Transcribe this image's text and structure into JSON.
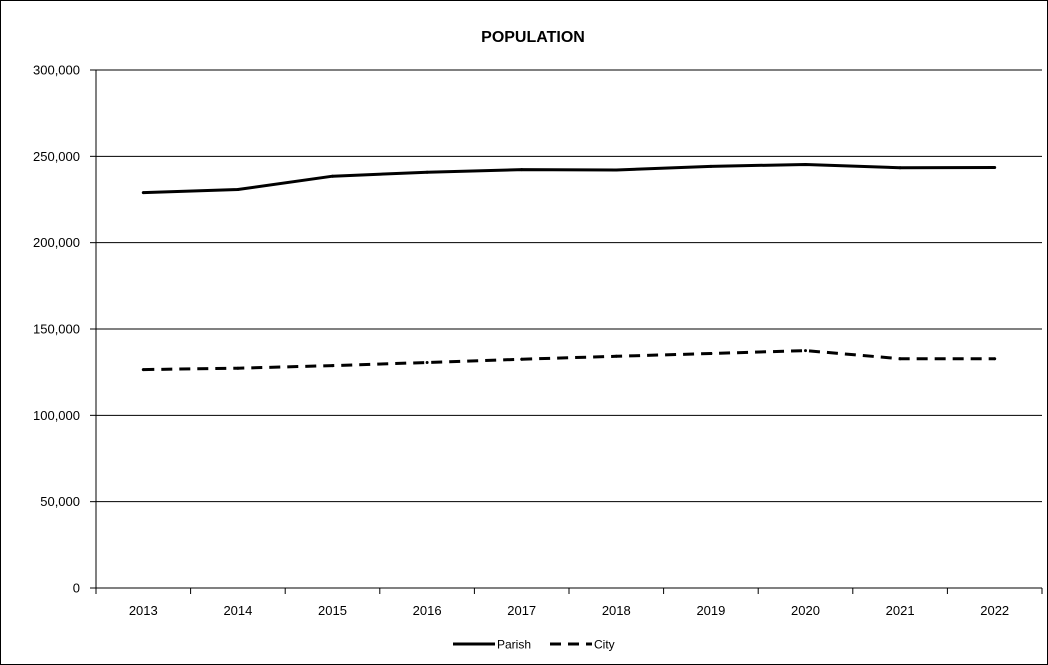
{
  "chart_data": {
    "type": "line",
    "title": "POPULATION",
    "xlabel": "",
    "ylabel": "",
    "categories": [
      "2013",
      "2014",
      "2015",
      "2016",
      "2017",
      "2018",
      "2019",
      "2020",
      "2021",
      "2022"
    ],
    "ylim": [
      0,
      300000
    ],
    "yticks": [
      0,
      50000,
      100000,
      150000,
      200000,
      250000,
      300000
    ],
    "ytick_labels": [
      "0",
      "50,000",
      "100,000",
      "150,000",
      "200,000",
      "250,000",
      "300,000"
    ],
    "grid": true,
    "legend_position": "bottom",
    "series": [
      {
        "name": "Parish",
        "style": "solid",
        "color": "#000000",
        "values": [
          229000,
          230800,
          238500,
          240800,
          242300,
          242100,
          244200,
          245300,
          243400,
          243500
        ]
      },
      {
        "name": "City",
        "style": "dashed",
        "color": "#000000",
        "values": [
          126500,
          127300,
          128800,
          130600,
          132500,
          134200,
          135800,
          137500,
          132800,
          132800
        ]
      }
    ]
  }
}
